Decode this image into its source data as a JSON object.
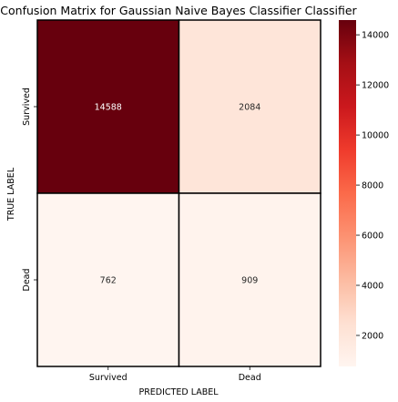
{
  "chart_data": {
    "type": "heatmap",
    "title": "Confusion Matrix for Gaussian Naive Bayes Classifier Classifier",
    "xlabel": "PREDICTED LABEL",
    "ylabel": "TRUE LABEL",
    "x_categories": [
      "Survived",
      "Dead"
    ],
    "y_categories": [
      "Survived",
      "Dead"
    ],
    "values": [
      [
        14588,
        2084
      ],
      [
        762,
        909
      ]
    ],
    "colormap": "Reds",
    "colorbar": {
      "range": [
        762,
        14588
      ],
      "ticks": [
        2000,
        4000,
        6000,
        8000,
        10000,
        12000,
        14000
      ]
    },
    "colors": {
      "low": "#fff5f0",
      "high": "#67000d",
      "cell_border": "#000000"
    }
  }
}
